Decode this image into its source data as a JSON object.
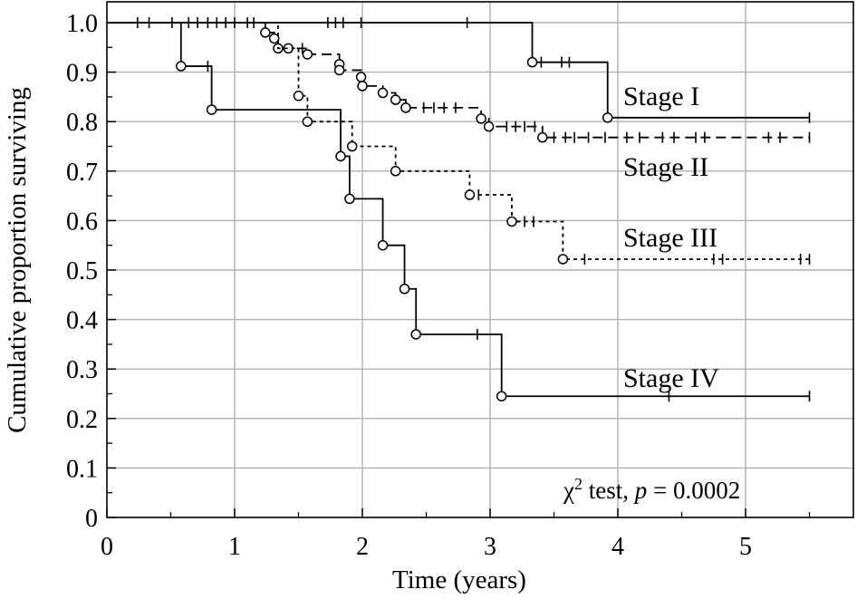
{
  "chart_data": {
    "type": "line",
    "subtype": "kaplan-meier survival curves",
    "title": "",
    "xlabel": "Time (years)",
    "ylabel": "Cumulative proportion surviving",
    "xlim": [
      0,
      5.7
    ],
    "ylim": [
      0,
      1.0
    ],
    "x_ticks": [
      "0",
      "1",
      "2",
      "3",
      "4",
      "5"
    ],
    "y_ticks": [
      "0",
      "0.1",
      "0.2",
      "0.3",
      "0.4",
      "0.5",
      "0.6",
      "0.7",
      "0.8",
      "0.9",
      "1.0"
    ],
    "grid": true,
    "annotation": {
      "prefix": "χ",
      "sup": "2",
      "middle": " test, ",
      "p": "p",
      "suffix": " = 0.0002"
    },
    "series": [
      {
        "name": "Stage I",
        "style": "solid",
        "steps": [
          [
            0,
            1.0
          ],
          [
            3.33,
            0.92
          ],
          [
            3.92,
            0.808
          ]
        ],
        "end_x": 5.5,
        "events": [
          [
            3.33,
            0.92
          ],
          [
            3.92,
            0.808
          ]
        ],
        "censored": [
          [
            0.24,
            1.0
          ],
          [
            0.33,
            1.0
          ],
          [
            0.51,
            1.0
          ],
          [
            0.64,
            1.0
          ],
          [
            0.71,
            1.0
          ],
          [
            0.79,
            1.0
          ],
          [
            0.86,
            1.0
          ],
          [
            0.93,
            1.0
          ],
          [
            1.0,
            1.0
          ],
          [
            1.1,
            1.0
          ],
          [
            1.15,
            1.0
          ],
          [
            1.73,
            1.0
          ],
          [
            1.79,
            1.0
          ],
          [
            1.85,
            1.0
          ],
          [
            1.99,
            1.0
          ],
          [
            2.82,
            1.0
          ],
          [
            3.4,
            0.92
          ],
          [
            3.56,
            0.92
          ],
          [
            3.62,
            0.92
          ],
          [
            5.5,
            0.808
          ]
        ]
      },
      {
        "name": "Stage II",
        "style": "dashed",
        "steps": [
          [
            0,
            1.0
          ],
          [
            1.24,
            0.98
          ],
          [
            1.31,
            0.968
          ],
          [
            1.34,
            0.948
          ],
          [
            1.42,
            0.948
          ],
          [
            1.57,
            0.936
          ],
          [
            1.82,
            0.916
          ],
          [
            1.82,
            0.904
          ],
          [
            1.99,
            0.89
          ],
          [
            2.0,
            0.872
          ],
          [
            2.16,
            0.858
          ],
          [
            2.26,
            0.844
          ],
          [
            2.34,
            0.828
          ],
          [
            2.93,
            0.806
          ],
          [
            2.99,
            0.79
          ],
          [
            3.41,
            0.768
          ]
        ],
        "end_x": 5.5,
        "events": [
          [
            1.24,
            0.98
          ],
          [
            1.31,
            0.968
          ],
          [
            1.34,
            0.948
          ],
          [
            1.42,
            0.948
          ],
          [
            1.57,
            0.936
          ],
          [
            1.82,
            0.916
          ],
          [
            1.82,
            0.904
          ],
          [
            1.99,
            0.89
          ],
          [
            2.0,
            0.872
          ],
          [
            2.16,
            0.858
          ],
          [
            2.26,
            0.844
          ],
          [
            2.34,
            0.828
          ],
          [
            2.93,
            0.806
          ],
          [
            2.99,
            0.79
          ],
          [
            3.41,
            0.768
          ]
        ],
        "censored": [
          [
            1.53,
            0.948
          ],
          [
            2.48,
            0.828
          ],
          [
            2.56,
            0.828
          ],
          [
            2.64,
            0.828
          ],
          [
            2.73,
            0.828
          ],
          [
            3.13,
            0.79
          ],
          [
            3.2,
            0.79
          ],
          [
            3.27,
            0.79
          ],
          [
            3.35,
            0.79
          ],
          [
            3.5,
            0.768
          ],
          [
            3.59,
            0.768
          ],
          [
            3.66,
            0.768
          ],
          [
            3.77,
            0.768
          ],
          [
            3.9,
            0.768
          ],
          [
            4.07,
            0.768
          ],
          [
            4.17,
            0.768
          ],
          [
            4.35,
            0.768
          ],
          [
            4.44,
            0.768
          ],
          [
            4.61,
            0.768
          ],
          [
            4.68,
            0.768
          ],
          [
            5.18,
            0.768
          ],
          [
            5.27,
            0.768
          ],
          [
            5.5,
            0.768
          ]
        ]
      },
      {
        "name": "Stage III",
        "style": "dotted",
        "steps": [
          [
            0,
            1.0
          ],
          [
            1.34,
            0.948
          ],
          [
            1.5,
            0.852
          ],
          [
            1.57,
            0.8
          ],
          [
            1.92,
            0.75
          ],
          [
            2.26,
            0.7
          ],
          [
            2.84,
            0.652
          ],
          [
            3.17,
            0.598
          ],
          [
            3.57,
            0.522
          ]
        ],
        "end_x": 5.5,
        "events": [
          [
            1.5,
            0.852
          ],
          [
            1.57,
            0.8
          ],
          [
            1.92,
            0.75
          ],
          [
            2.26,
            0.7
          ],
          [
            2.84,
            0.652
          ],
          [
            3.17,
            0.598
          ],
          [
            3.57,
            0.522
          ]
        ],
        "censored": [
          [
            2.91,
            0.652
          ],
          [
            3.27,
            0.598
          ],
          [
            3.34,
            0.598
          ],
          [
            3.74,
            0.522
          ],
          [
            4.75,
            0.522
          ],
          [
            4.82,
            0.522
          ],
          [
            5.43,
            0.522
          ],
          [
            5.5,
            0.522
          ]
        ]
      },
      {
        "name": "Stage IV",
        "style": "solid",
        "steps": [
          [
            0,
            1.0
          ],
          [
            0.58,
            0.912
          ],
          [
            0.82,
            0.824
          ],
          [
            1.83,
            0.73
          ],
          [
            1.9,
            0.644
          ],
          [
            2.16,
            0.55
          ],
          [
            2.33,
            0.462
          ],
          [
            2.42,
            0.37
          ],
          [
            3.09,
            0.245
          ]
        ],
        "end_x": 5.5,
        "events": [
          [
            0.58,
            0.912
          ],
          [
            0.82,
            0.824
          ],
          [
            1.83,
            0.73
          ],
          [
            1.9,
            0.644
          ],
          [
            2.16,
            0.55
          ],
          [
            2.33,
            0.462
          ],
          [
            2.42,
            0.37
          ],
          [
            3.09,
            0.245
          ]
        ],
        "censored": [
          [
            0.79,
            0.912
          ],
          [
            2.9,
            0.37
          ],
          [
            4.4,
            0.245
          ],
          [
            5.5,
            0.245
          ]
        ]
      }
    ],
    "series_label_positions": [
      "Stage I",
      "Stage II",
      "Stage III",
      "Stage IV"
    ]
  }
}
